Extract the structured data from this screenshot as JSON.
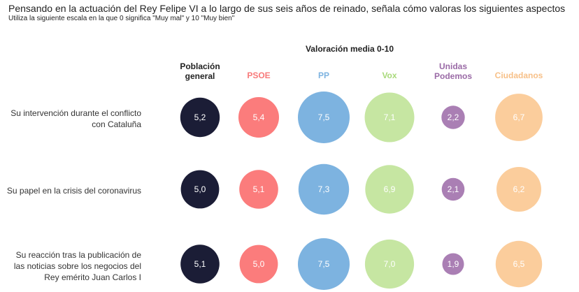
{
  "chart_data": {
    "type": "bubble",
    "title": "Pensando en la actuación del Rey Felipe VI a lo largo de sus seis años de reinado, señala cómo valoras los siguientes aspectos",
    "subtitle": "Utiliza la siguiente escala en la que 0 significa \"Muy mal\" y 10 \"Muy bien\"",
    "value_heading": "Valoración media 0-10",
    "categories": [
      "Su intervención durante el conflicto con Cataluña",
      "Su papel en la crisis del coronavirus",
      "Su reacción tras la publicación de las noticias sobre los negocios del Rey emérito Juan Carlos I"
    ],
    "series": [
      {
        "name": "Población general",
        "color": "#1b1d36",
        "label_color": "#ffffff",
        "header_color": "#222222",
        "values": [
          5.2,
          5.0,
          5.1
        ],
        "labels": [
          "5,2",
          "5,0",
          "5,1"
        ]
      },
      {
        "name": "PSOE",
        "color": "#fb7c7c",
        "label_color": "#ffffff",
        "header_color": "#f87a7a",
        "values": [
          5.4,
          5.1,
          5.0
        ],
        "labels": [
          "5,4",
          "5,1",
          "5,0"
        ]
      },
      {
        "name": "PP",
        "color": "#7db3e0",
        "label_color": "#ffffff",
        "header_color": "#7db3e0",
        "values": [
          7.5,
          7.3,
          7.5
        ],
        "labels": [
          "7,5",
          "7,3",
          "7,5"
        ]
      },
      {
        "name": "Vox",
        "color": "#c6e6a2",
        "label_color": "#ffffff",
        "header_color": "#a8d97a",
        "values": [
          7.1,
          6.9,
          7.0
        ],
        "labels": [
          "7,1",
          "6,9",
          "7,0"
        ]
      },
      {
        "name": "Unidas Podemos",
        "color": "#aa7fb4",
        "label_color": "#ffffff",
        "header_color": "#9a6aa6",
        "values": [
          2.2,
          2.1,
          1.9
        ],
        "labels": [
          "2,2",
          "2,1",
          "1,9"
        ]
      },
      {
        "name": "Ciudadanos",
        "color": "#fbcd9c",
        "label_color": "#ffffff",
        "header_color": "#f7c088",
        "values": [
          6.7,
          6.2,
          6.5
        ],
        "labels": [
          "6,7",
          "6,2",
          "6,5"
        ]
      }
    ],
    "header_lines": [
      [
        "Población",
        "general"
      ],
      [
        "PSOE"
      ],
      [
        "PP"
      ],
      [
        "Vox"
      ],
      [
        "Unidas",
        "Podemos"
      ],
      [
        "Ciudadanos"
      ]
    ],
    "category_lines": [
      [
        "Su intervención durante el conflicto",
        "con Cataluña"
      ],
      [
        "Su papel en la crisis del coronavirus"
      ],
      [
        "Su reacción tras la publicación de",
        "las noticias sobre los negocios del",
        "Rey emérito Juan Carlos I"
      ]
    ]
  }
}
